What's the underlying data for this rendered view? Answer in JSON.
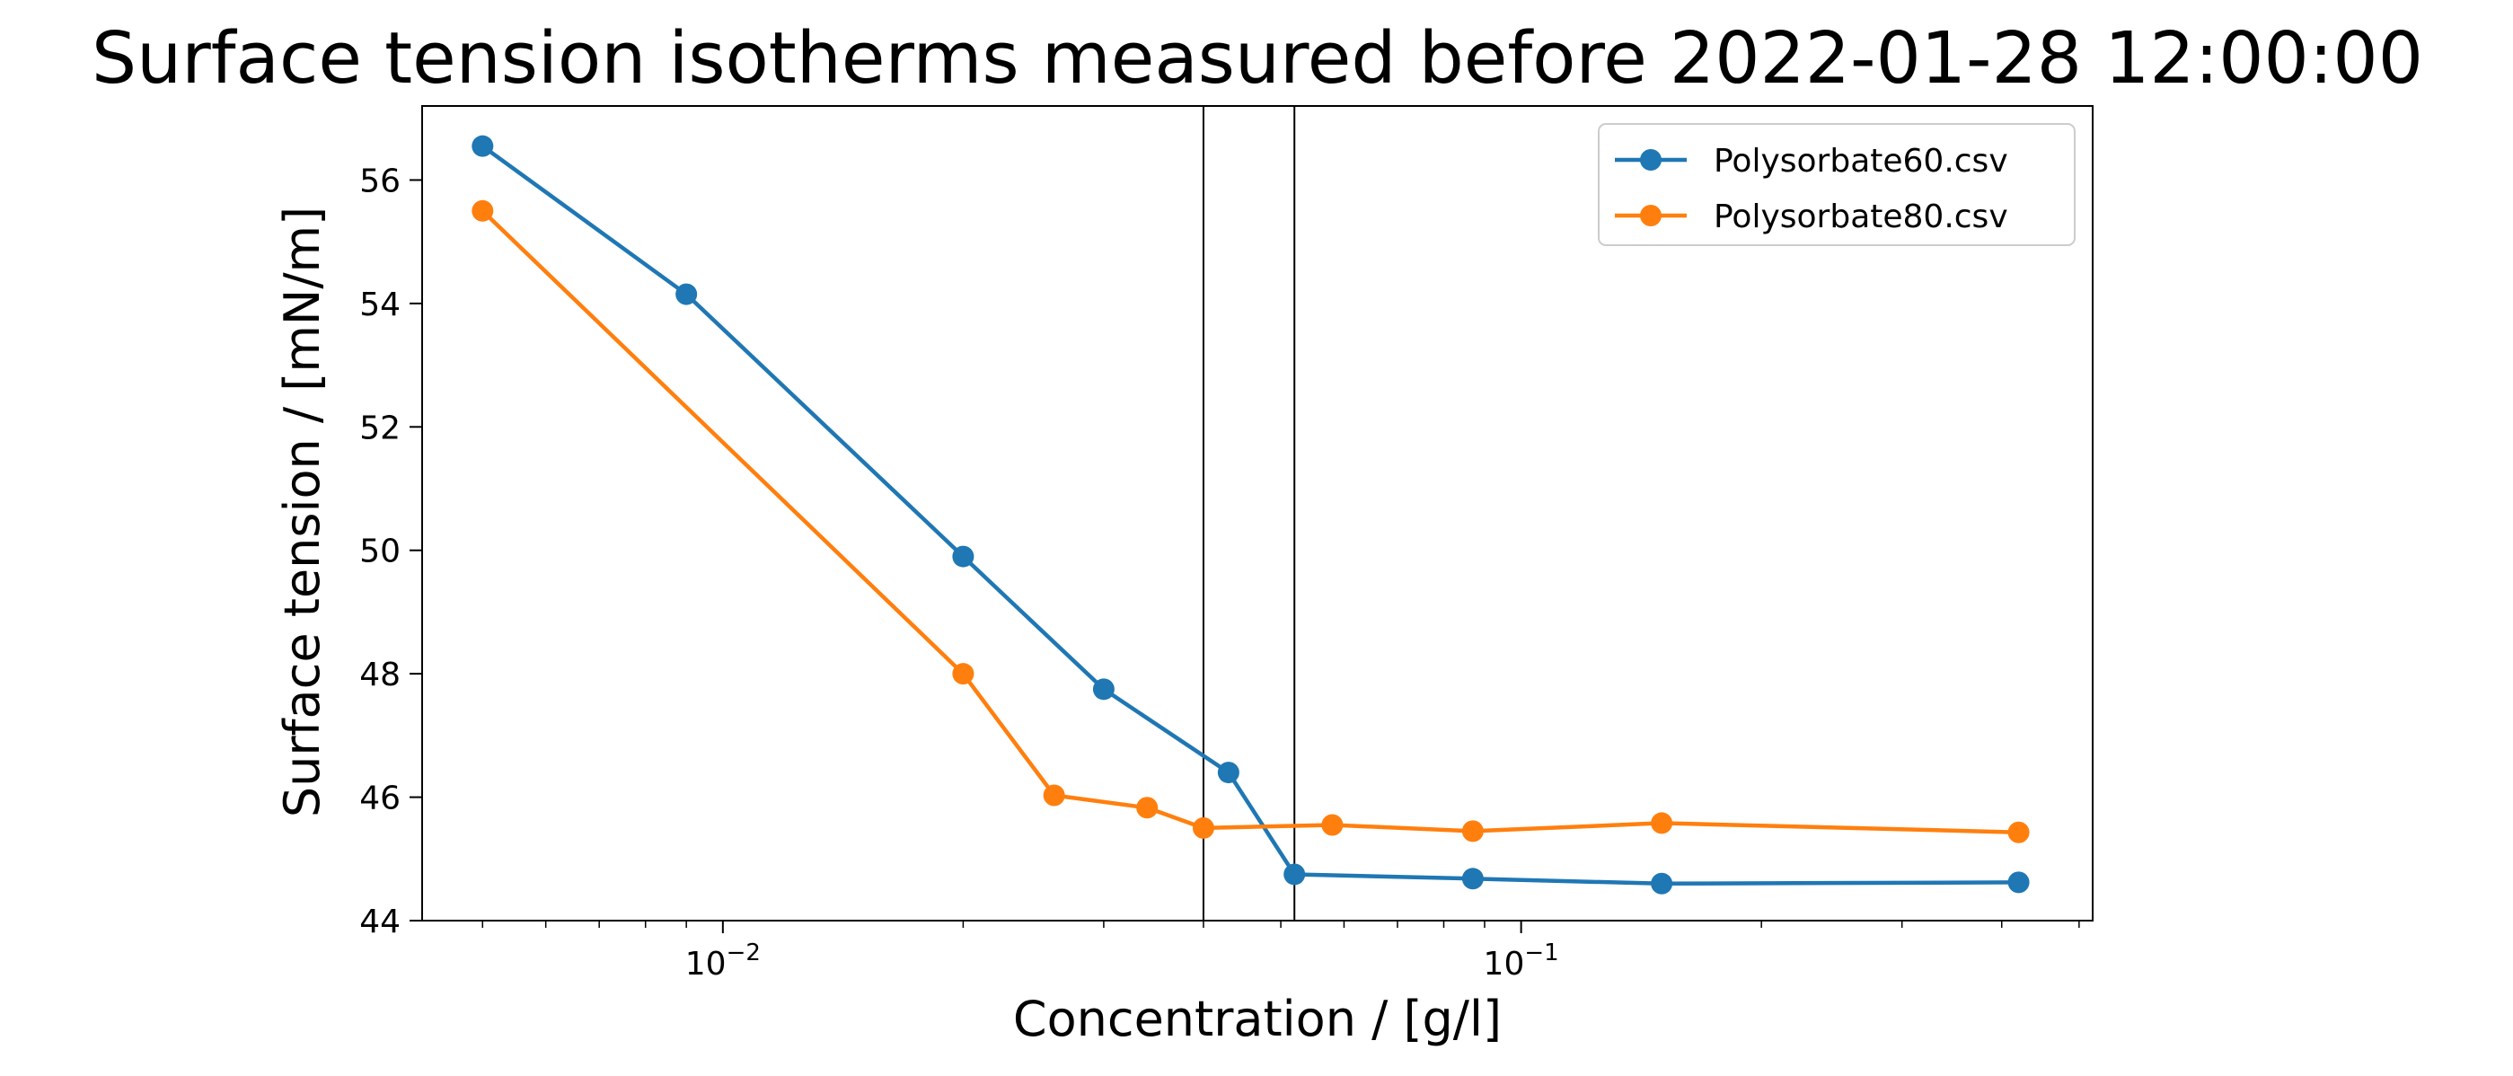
{
  "chart_data": {
    "type": "line",
    "title": "Surface tension isotherms measured before 2022-01-28 12:00:00",
    "xlabel": "Concentration / [g/l]",
    "ylabel": "Surface tension / [mN/m]",
    "xscale": "log",
    "xlim": [
      0.0042,
      0.52
    ],
    "ylim": [
      44,
      57.2
    ],
    "grid": false,
    "legend_position": "top-right",
    "x_ticks": [
      {
        "value": 0.01,
        "label_base": "10",
        "label_exp": "−2"
      },
      {
        "value": 0.1,
        "label_base": "10",
        "label_exp": "−1"
      }
    ],
    "y_ticks": [
      44,
      46,
      48,
      50,
      52,
      54,
      56
    ],
    "vertical_lines": [
      0.04,
      0.052
    ],
    "series": [
      {
        "name": "Polysorbate60.csv",
        "color": "#1f77b4",
        "x": [
          0.005,
          0.009,
          0.02,
          0.03,
          0.043,
          0.052,
          0.087,
          0.15,
          0.42
        ],
        "y": [
          56.55,
          54.15,
          49.9,
          47.75,
          46.4,
          44.75,
          44.68,
          44.6,
          44.62
        ]
      },
      {
        "name": "Polysorbate80.csv",
        "color": "#ff7f0e",
        "x": [
          0.005,
          0.02,
          0.026,
          0.034,
          0.04,
          0.058,
          0.087,
          0.15,
          0.42
        ],
        "y": [
          55.5,
          48.0,
          46.03,
          45.83,
          45.5,
          45.55,
          45.45,
          45.58,
          45.43
        ]
      }
    ]
  }
}
